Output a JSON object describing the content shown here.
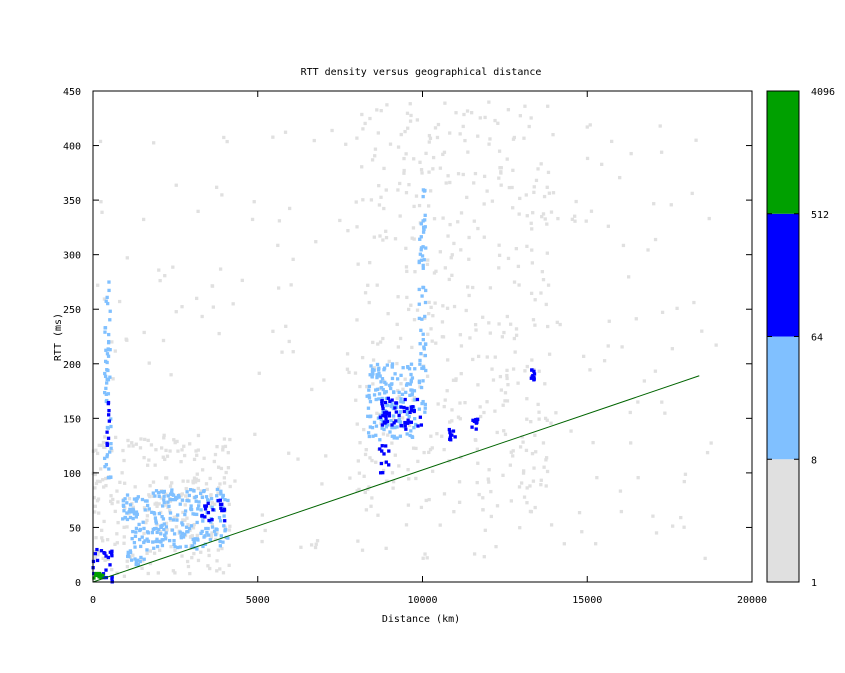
{
  "chart_data": {
    "type": "heatmap",
    "title": "RTT density versus geographical distance",
    "xlabel": "Distance (km)",
    "ylabel": "RTT (ms)",
    "xlim": [
      0,
      20000
    ],
    "ylim": [
      0,
      450
    ],
    "x_ticks": [
      0,
      5000,
      10000,
      15000,
      20000
    ],
    "y_ticks": [
      0,
      50,
      100,
      150,
      200,
      250,
      300,
      350,
      400,
      450
    ],
    "colorbar": {
      "scale": "log",
      "ticks": [
        "1",
        "8",
        "64",
        "512",
        "4096"
      ],
      "bins": [
        {
          "min": 1,
          "max": 8,
          "color": "#e0e0e0"
        },
        {
          "min": 8,
          "max": 64,
          "color": "#80c0ff"
        },
        {
          "min": 64,
          "max": 512,
          "color": "#0000ff"
        },
        {
          "min": 512,
          "max": 4096,
          "color": "#00a000"
        }
      ]
    },
    "reference_line": {
      "color": "#006400",
      "points": [
        [
          0,
          0
        ],
        [
          18400,
          189
        ]
      ]
    },
    "clusters": [
      {
        "x": [
          0,
          600
        ],
        "y": [
          0,
          30
        ],
        "level": 2
      },
      {
        "x": [
          0,
          350
        ],
        "y": [
          0,
          8
        ],
        "level": 3
      },
      {
        "x": [
          350,
          550
        ],
        "y": [
          95,
          280
        ],
        "level": 1
      },
      {
        "x": [
          420,
          500
        ],
        "y": [
          100,
          165
        ],
        "level": 2
      },
      {
        "x": [
          900,
          1700
        ],
        "y": [
          15,
          80
        ],
        "level": 1
      },
      {
        "x": [
          1700,
          4100
        ],
        "y": [
          30,
          85
        ],
        "level": 1
      },
      {
        "x": [
          3300,
          4000
        ],
        "y": [
          55,
          75
        ],
        "level": 2
      },
      {
        "x": [
          8300,
          9800
        ],
        "y": [
          130,
          200
        ],
        "level": 1
      },
      {
        "x": [
          8700,
          10000
        ],
        "y": [
          140,
          170
        ],
        "level": 2
      },
      {
        "x": [
          8700,
          9000
        ],
        "y": [
          100,
          125
        ],
        "level": 2
      },
      {
        "x": [
          9900,
          10100
        ],
        "y": [
          150,
          370
        ],
        "level": 1
      },
      {
        "x": [
          10800,
          11000
        ],
        "y": [
          130,
          140
        ],
        "level": 2
      },
      {
        "x": [
          11500,
          11700
        ],
        "y": [
          140,
          150
        ],
        "level": 2
      },
      {
        "x": [
          13300,
          13400
        ],
        "y": [
          185,
          195
        ],
        "level": 2
      }
    ]
  }
}
